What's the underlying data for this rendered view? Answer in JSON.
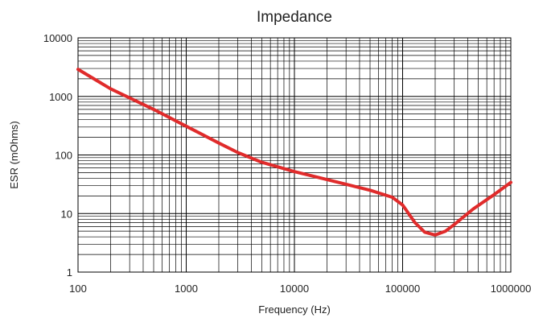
{
  "chart_data": {
    "type": "line",
    "title": "Impedance",
    "xlabel": "Frequency (Hz)",
    "ylabel": "ESR (mOhms)",
    "x_scale": "log",
    "y_scale": "log",
    "xlim": [
      100,
      1000000
    ],
    "ylim": [
      1,
      10000
    ],
    "grid": true,
    "legend": "none",
    "x_ticks": [
      "100",
      "1000",
      "10000",
      "100000",
      "1000000"
    ],
    "y_ticks": [
      "1",
      "10",
      "100",
      "1000",
      "10000"
    ],
    "series": [
      {
        "color": "#e02b2b",
        "x": [
          100,
          200,
          500,
          1000,
          2000,
          3000,
          5000,
          10000,
          20000,
          50000,
          80000,
          100000,
          130000,
          160000,
          200000,
          250000,
          300000,
          450000,
          700000,
          1000000
        ],
        "y": [
          2900,
          1350,
          600,
          310,
          160,
          110,
          75,
          52,
          38,
          25,
          19,
          14,
          7,
          4.8,
          4.3,
          5.0,
          6.5,
          12,
          21,
          34
        ]
      }
    ]
  }
}
